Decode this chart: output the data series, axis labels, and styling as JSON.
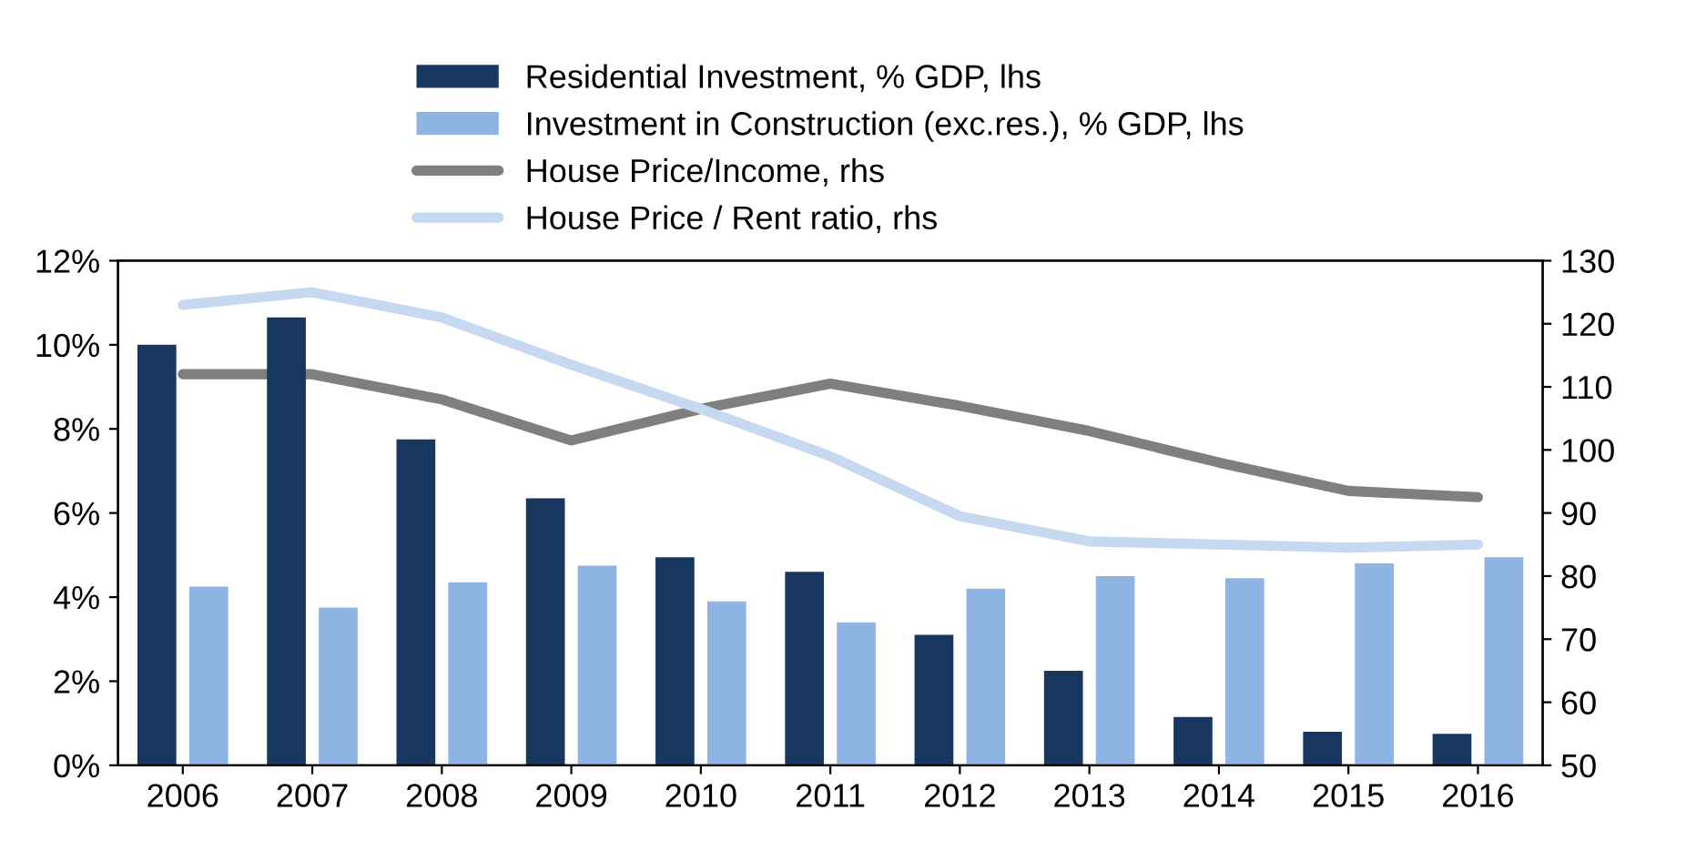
{
  "chart_data": {
    "type": "bar",
    "categories": [
      "2006",
      "2007",
      "2008",
      "2009",
      "2010",
      "2011",
      "2012",
      "2013",
      "2014",
      "2015",
      "2016"
    ],
    "series": [
      {
        "name": "Residential Investment, % GDP, lhs",
        "color": "#17375e",
        "values": [
          10.0,
          10.65,
          7.75,
          6.35,
          4.95,
          4.6,
          3.1,
          2.25,
          1.15,
          0.8,
          0.75
        ]
      },
      {
        "name": "Investment in Construction (exc.res.), % GDP, lhs",
        "color": "#8eb4e3",
        "values": [
          4.25,
          3.75,
          4.35,
          4.75,
          3.9,
          3.4,
          4.2,
          4.5,
          4.45,
          4.8,
          4.95
        ]
      },
      {
        "name": "House Price/Income, rhs",
        "color": "#7f7f7f",
        "type": "line",
        "axis": "y2",
        "values": [
          112,
          112,
          108,
          101.5,
          106.5,
          110.5,
          107,
          103,
          98,
          93.5,
          92.5
        ]
      },
      {
        "name": "House Price / Rent ratio, rhs",
        "color": "#c6d9f1",
        "type": "line",
        "axis": "y2",
        "values": [
          123,
          125,
          121,
          113.5,
          106.5,
          99,
          89.5,
          85.5,
          85,
          84.5,
          85
        ]
      }
    ],
    "ylim": [
      0,
      12
    ],
    "yticks": [
      {
        "value": 0,
        "label": "0%"
      },
      {
        "value": 2,
        "label": "2%"
      },
      {
        "value": 4,
        "label": "4%"
      },
      {
        "value": 6,
        "label": "6%"
      },
      {
        "value": 8,
        "label": "8%"
      },
      {
        "value": 10,
        "label": "10%"
      },
      {
        "value": 12,
        "label": "12%"
      }
    ],
    "y2lim": [
      50,
      130
    ],
    "y2ticks": [
      50,
      60,
      70,
      80,
      90,
      100,
      110,
      120,
      130
    ],
    "legend": "top",
    "grid": false,
    "marker": "none",
    "line_style": "solid"
  }
}
